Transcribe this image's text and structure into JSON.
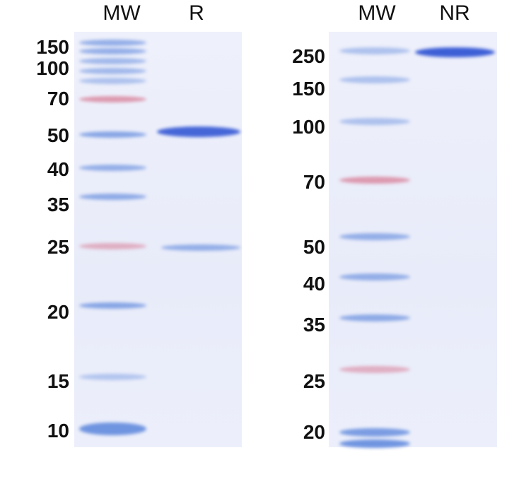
{
  "left_gel": {
    "lanes": [
      "MW",
      "R"
    ],
    "markers_kda": [
      "150",
      "100",
      "70",
      "50",
      "40",
      "35",
      "25",
      "20",
      "15",
      "10"
    ]
  },
  "right_gel": {
    "lanes": [
      "MW",
      "NR"
    ],
    "markers_kda": [
      "250",
      "150",
      "100",
      "70",
      "50",
      "40",
      "35",
      "25",
      "20"
    ]
  },
  "colors": {
    "marker_blue": "#6f94e0",
    "marker_red": "#d9849c",
    "sample_band": "#3d5fd6",
    "gel_background": "#eaedfa"
  }
}
